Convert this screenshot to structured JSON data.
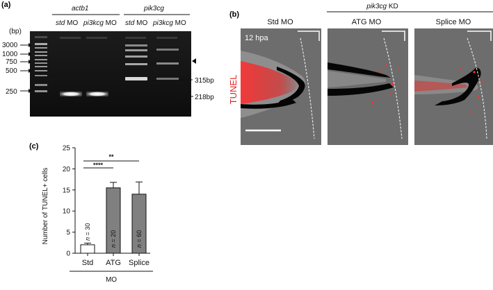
{
  "panel_a": {
    "letter": "(a)",
    "bp_unit": "(bp)",
    "group_actb1": "actb1",
    "group_pik3cg": "pik3cg",
    "lanes": [
      "std MO",
      "pi3kcg MO",
      "std MO",
      "pi3kcg MO"
    ],
    "lane_italic": [
      "std",
      "pi3kcg",
      "std",
      "pi3kcg"
    ],
    "lane_suffix": " MO",
    "ladder": [
      "3000",
      "1000",
      "750",
      "500",
      "250"
    ],
    "band_labels": [
      "315bp",
      "218bp"
    ]
  },
  "panel_b": {
    "letter": "(b)",
    "group_title_italic": "pik3cg",
    "group_title_suffix": " KD",
    "columns": [
      "Std MO",
      "ATG MO",
      "Splice MO"
    ],
    "time_label": "12 hpa",
    "row_label": "TUNEL",
    "tunel_color": "#e8201e"
  },
  "panel_c": {
    "letter": "(c)",
    "significance": [
      "****",
      "**"
    ],
    "n_prefix": "n",
    "n_values": [
      "= 30",
      "= 20",
      "= 60"
    ],
    "group_label": "MO"
  },
  "chart_data": {
    "type": "bar",
    "categories": [
      "Std",
      "ATG",
      "Splice"
    ],
    "values": [
      2.0,
      15.5,
      14.0
    ],
    "errors": [
      0.4,
      1.3,
      2.9
    ],
    "bar_colors": [
      "#ffffff",
      "#808080",
      "#808080"
    ],
    "ylabel": "Number of TUNEL+ cells",
    "xlabel": "MO",
    "ylim": [
      0,
      25
    ],
    "yticks": [
      "0",
      "5",
      "10",
      "15",
      "20",
      "25"
    ]
  }
}
